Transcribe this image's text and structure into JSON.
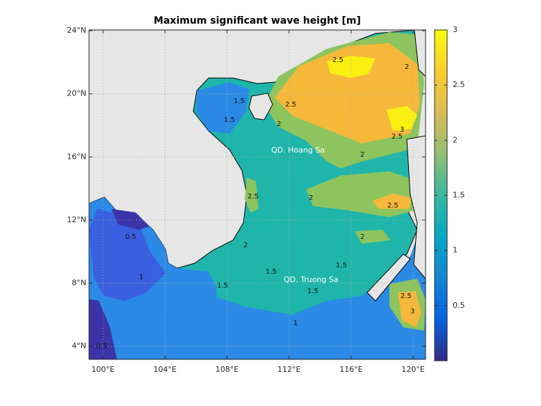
{
  "title": "Maximum significant wave height [m]",
  "map": {
    "lon_lim": [
      99.1,
      120.8
    ],
    "lat_lim": [
      3.17,
      24.05
    ],
    "lon_ticks": [
      {
        "value": 100,
        "label": "100°E"
      },
      {
        "value": 104,
        "label": "104°E"
      },
      {
        "value": 108,
        "label": "108°E"
      },
      {
        "value": 112,
        "label": "112°E"
      },
      {
        "value": 116,
        "label": "116°E"
      },
      {
        "value": 120,
        "label": "120°E"
      }
    ],
    "lat_ticks": [
      {
        "value": 4,
        "label": "4°N"
      },
      {
        "value": 8,
        "label": "8°N"
      },
      {
        "value": 12,
        "label": "12°N"
      },
      {
        "value": 16,
        "label": "16°N"
      },
      {
        "value": 20,
        "label": "20°N"
      },
      {
        "value": 24,
        "label": "24°N"
      }
    ],
    "annotations": [
      "QD. Hoang Sa",
      "QD. Truong Sa"
    ],
    "contour_labels": [
      "2.5",
      "2.5",
      "2",
      "2",
      "1.5",
      "1.5",
      "2.5",
      "2",
      "2",
      "2.5",
      "2",
      "1.5",
      "1.5",
      "1.5",
      "1",
      "0.5",
      "0.5",
      "2.5",
      "3",
      "2",
      "2.5",
      "3",
      "1.5",
      "1"
    ]
  },
  "colorbar": {
    "lim": [
      0,
      3
    ],
    "ticks": [
      0.5,
      1,
      1.5,
      2,
      2.5,
      3
    ]
  }
}
